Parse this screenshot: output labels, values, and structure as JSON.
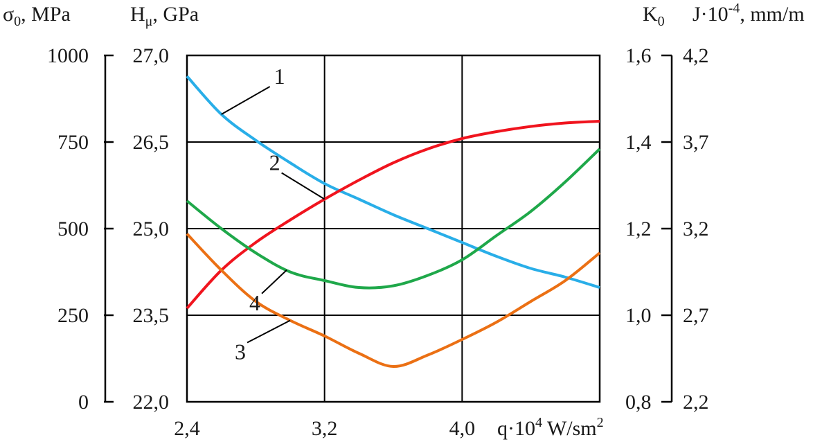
{
  "chart_data": {
    "type": "line",
    "x": [
      2.4,
      2.8,
      3.2,
      3.6,
      4.0,
      4.4
    ],
    "xlabel": "q·10⁴ W/sm²",
    "x_ticks": [
      "2,4",
      "3,2",
      "4,0"
    ],
    "xlim": [
      2.4,
      4.8
    ],
    "grid": true,
    "axes": {
      "sigma": {
        "label": "σ₀, MPa",
        "range": [
          0,
          1000
        ],
        "ticks": [
          "1000",
          "750",
          "500",
          "250",
          "0"
        ]
      },
      "hardness": {
        "label": "Hμ, GPa",
        "range": [
          22.0,
          27.0
        ],
        "ticks": [
          "27,0",
          "26,5",
          "25,0",
          "23,5",
          "22,0"
        ]
      },
      "k0": {
        "label": "K₀",
        "range": [
          0.8,
          1.6
        ],
        "ticks": [
          "1,6",
          "1,4",
          "1,2",
          "1,0",
          "0,8"
        ]
      },
      "wear": {
        "label": "J·10⁻⁴, mm/m",
        "range": [
          2.2,
          4.2
        ],
        "ticks": [
          "4,2",
          "3,7",
          "3,2",
          "2,7",
          "2,2"
        ]
      }
    },
    "series": [
      {
        "name": "1",
        "color": "#29aee8",
        "x": [
          2.4,
          2.6,
          2.8,
          3.0,
          3.2,
          3.4,
          3.6,
          3.8,
          4.0,
          4.2,
          4.4,
          4.6,
          4.8
        ],
        "values": [
          0.94,
          0.83,
          0.755,
          0.69,
          0.63,
          0.585,
          0.54,
          0.5,
          0.46,
          0.42,
          0.385,
          0.36,
          0.33
        ]
      },
      {
        "name": "2",
        "color": "#f0141e",
        "x": [
          2.4,
          2.6,
          2.8,
          3.0,
          3.2,
          3.4,
          3.6,
          3.8,
          4.0,
          4.2,
          4.4,
          4.6,
          4.8
        ],
        "values": [
          0.27,
          0.38,
          0.46,
          0.525,
          0.585,
          0.64,
          0.69,
          0.73,
          0.76,
          0.78,
          0.795,
          0.805,
          0.81
        ]
      },
      {
        "name": "3",
        "color": "#eb7014",
        "x": [
          2.4,
          2.6,
          2.8,
          3.0,
          3.2,
          3.4,
          3.6,
          3.8,
          4.0,
          4.2,
          4.4,
          4.6,
          4.8
        ],
        "values": [
          0.485,
          0.38,
          0.29,
          0.235,
          0.19,
          0.14,
          0.102,
          0.135,
          0.18,
          0.23,
          0.29,
          0.35,
          0.43
        ]
      },
      {
        "name": "4",
        "color": "#1fa84a",
        "x": [
          2.4,
          2.6,
          2.8,
          3.0,
          3.2,
          3.4,
          3.6,
          3.8,
          4.0,
          4.2,
          4.4,
          4.6,
          4.8
        ],
        "values": [
          0.58,
          0.5,
          0.43,
          0.375,
          0.35,
          0.33,
          0.335,
          0.365,
          0.41,
          0.48,
          0.55,
          0.635,
          0.73
        ]
      }
    ],
    "annotations": [
      "1",
      "2",
      "3",
      "4"
    ]
  }
}
